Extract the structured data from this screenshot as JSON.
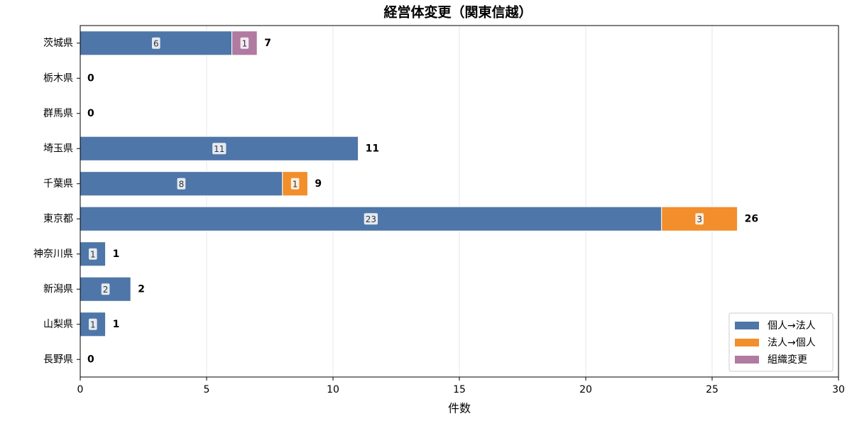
{
  "chart_data": {
    "type": "barh_stacked",
    "title": "経営体変更（関東信越）",
    "xlabel": "件数",
    "categories": [
      "茨城県",
      "栃木県",
      "群馬県",
      "埼玉県",
      "千葉県",
      "東京都",
      "神奈川県",
      "新潟県",
      "山梨県",
      "長野県"
    ],
    "series": [
      {
        "name": "個人→法人",
        "color": "#4e76a8",
        "values": [
          6,
          0,
          0,
          11,
          8,
          23,
          1,
          2,
          1,
          0
        ]
      },
      {
        "name": "法人→個人",
        "color": "#f28e2b",
        "values": [
          0,
          0,
          0,
          0,
          1,
          3,
          0,
          0,
          0,
          0
        ]
      },
      {
        "name": "組織変更",
        "color": "#b07aa1",
        "values": [
          1,
          0,
          0,
          0,
          0,
          0,
          0,
          0,
          0,
          0
        ]
      }
    ],
    "totals": [
      7,
      0,
      0,
      11,
      9,
      26,
      1,
      2,
      1,
      0
    ],
    "xlim": [
      0,
      30
    ],
    "xticks": [
      0,
      5,
      10,
      15,
      20,
      25,
      30
    ],
    "grid": true,
    "legend": "lower right"
  }
}
